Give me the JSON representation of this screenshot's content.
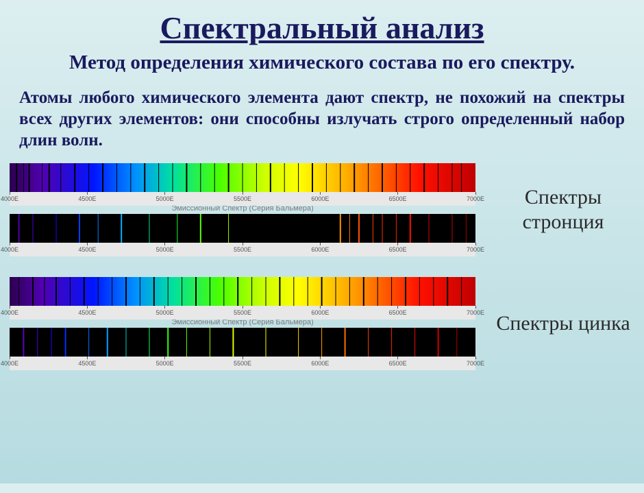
{
  "title": "Спектральный анализ",
  "subtitle": "Метод определения химического состава по его спектру.",
  "paragraph": "Атомы любого химического элемента дают спектр, не похожий на спектры всех других элементов: они способны излучать строго определенный набор длин волн.",
  "emission_caption": "Эмиссионный Спектр (Серия Бальмера)",
  "tick_labels": [
    "4000E",
    "4500E",
    "5000E",
    "5500E",
    "6000E",
    "6500E",
    "7000E"
  ],
  "tick_positions_pct": [
    0,
    16.67,
    33.33,
    50,
    66.67,
    83.33,
    100
  ],
  "rainbow_gradient": "linear-gradient(to right,#2c004f 0%,#5100b0 7%,#0015ff 18%,#0090ff 27%,#00e0a0 35%,#49ff00 45%,#d0ff00 55%,#ffff00 62%,#ffb000 72%,#ff6000 80%,#ff1000 88%,#c00000 100%)",
  "strontium": {
    "label": "Спектры стронция",
    "absorption_lines": [
      {
        "p": 1.5,
        "w": 2,
        "c": "#000"
      },
      {
        "p": 3,
        "w": 1,
        "c": "#000"
      },
      {
        "p": 4.2,
        "w": 2,
        "c": "#000"
      },
      {
        "p": 7,
        "w": 1,
        "c": "#000"
      },
      {
        "p": 8.5,
        "w": 2,
        "c": "#000"
      },
      {
        "p": 11,
        "w": 1,
        "c": "#000"
      },
      {
        "p": 14,
        "w": 2,
        "c": "#000"
      },
      {
        "p": 17,
        "w": 1,
        "c": "#000"
      },
      {
        "p": 20,
        "w": 2,
        "c": "#000"
      },
      {
        "p": 23,
        "w": 1,
        "c": "#000"
      },
      {
        "p": 26,
        "w": 1,
        "c": "#000"
      },
      {
        "p": 29,
        "w": 2,
        "c": "#000"
      },
      {
        "p": 32,
        "w": 1,
        "c": "#000"
      },
      {
        "p": 35,
        "w": 1,
        "c": "#000"
      },
      {
        "p": 38,
        "w": 2,
        "c": "#000"
      },
      {
        "p": 41,
        "w": 1,
        "c": "#000"
      },
      {
        "p": 44,
        "w": 1,
        "c": "#000"
      },
      {
        "p": 47,
        "w": 2,
        "c": "#000"
      },
      {
        "p": 50,
        "w": 1,
        "c": "#000"
      },
      {
        "p": 53,
        "w": 1,
        "c": "#000"
      },
      {
        "p": 56,
        "w": 2,
        "c": "#000"
      },
      {
        "p": 59,
        "w": 1,
        "c": "#000"
      },
      {
        "p": 62,
        "w": 1,
        "c": "#000"
      },
      {
        "p": 65,
        "w": 2,
        "c": "#000"
      },
      {
        "p": 68,
        "w": 1,
        "c": "#000"
      },
      {
        "p": 71,
        "w": 1,
        "c": "#000"
      },
      {
        "p": 74,
        "w": 2,
        "c": "#000"
      },
      {
        "p": 77,
        "w": 1,
        "c": "#000"
      },
      {
        "p": 80,
        "w": 2,
        "c": "#000"
      },
      {
        "p": 83,
        "w": 1,
        "c": "#000"
      },
      {
        "p": 86,
        "w": 1,
        "c": "#000"
      },
      {
        "p": 89,
        "w": 2,
        "c": "#000"
      },
      {
        "p": 92,
        "w": 1,
        "c": "#000"
      },
      {
        "p": 95,
        "w": 1,
        "c": "#000"
      },
      {
        "p": 97,
        "w": 1,
        "c": "#000"
      }
    ],
    "emission_lines": [
      {
        "p": 2,
        "w": 2,
        "c": "#5100b0"
      },
      {
        "p": 5,
        "w": 1,
        "c": "#4a00d0"
      },
      {
        "p": 10,
        "w": 1,
        "c": "#2500ff"
      },
      {
        "p": 15,
        "w": 2,
        "c": "#0040ff"
      },
      {
        "p": 19,
        "w": 1,
        "c": "#0080ff"
      },
      {
        "p": 24,
        "w": 2,
        "c": "#00b0ff"
      },
      {
        "p": 30,
        "w": 1,
        "c": "#00e090"
      },
      {
        "p": 36,
        "w": 1,
        "c": "#10ff30"
      },
      {
        "p": 41,
        "w": 2,
        "c": "#60ff00"
      },
      {
        "p": 47,
        "w": 1,
        "c": "#a0ff00"
      },
      {
        "p": 71,
        "w": 2,
        "c": "#ff9000"
      },
      {
        "p": 73,
        "w": 1,
        "c": "#ff7000"
      },
      {
        "p": 75,
        "w": 2,
        "c": "#ff5000"
      },
      {
        "p": 78,
        "w": 1,
        "c": "#ff4000"
      },
      {
        "p": 80,
        "w": 1,
        "c": "#ff3000"
      },
      {
        "p": 83,
        "w": 1,
        "c": "#ff2000"
      },
      {
        "p": 86,
        "w": 2,
        "c": "#ff1000"
      },
      {
        "p": 90,
        "w": 1,
        "c": "#e00000"
      },
      {
        "p": 95,
        "w": 1,
        "c": "#c00000"
      },
      {
        "p": 98,
        "w": 1,
        "c": "#a00000"
      }
    ]
  },
  "zinc": {
    "label": "Спектры цинка",
    "absorption_lines": [
      {
        "p": 2,
        "w": 1,
        "c": "#000"
      },
      {
        "p": 5,
        "w": 2,
        "c": "#000"
      },
      {
        "p": 7.5,
        "w": 1,
        "c": "#000"
      },
      {
        "p": 10,
        "w": 2,
        "c": "#000"
      },
      {
        "p": 13,
        "w": 1,
        "c": "#000"
      },
      {
        "p": 16,
        "w": 2,
        "c": "#000"
      },
      {
        "p": 19,
        "w": 1,
        "c": "#000"
      },
      {
        "p": 22,
        "w": 1,
        "c": "#000"
      },
      {
        "p": 25,
        "w": 2,
        "c": "#000"
      },
      {
        "p": 28,
        "w": 1,
        "c": "#000"
      },
      {
        "p": 31,
        "w": 2,
        "c": "#000"
      },
      {
        "p": 34,
        "w": 1,
        "c": "#000"
      },
      {
        "p": 37,
        "w": 1,
        "c": "#000"
      },
      {
        "p": 40,
        "w": 2,
        "c": "#000"
      },
      {
        "p": 43,
        "w": 1,
        "c": "#000"
      },
      {
        "p": 46,
        "w": 1,
        "c": "#000"
      },
      {
        "p": 49,
        "w": 2,
        "c": "#000"
      },
      {
        "p": 52,
        "w": 1,
        "c": "#000"
      },
      {
        "p": 55,
        "w": 1,
        "c": "#000"
      },
      {
        "p": 58,
        "w": 2,
        "c": "#000"
      },
      {
        "p": 61,
        "w": 1,
        "c": "#000"
      },
      {
        "p": 64,
        "w": 1,
        "c": "#000"
      },
      {
        "p": 67,
        "w": 2,
        "c": "#000"
      },
      {
        "p": 70,
        "w": 1,
        "c": "#000"
      },
      {
        "p": 73,
        "w": 1,
        "c": "#000"
      },
      {
        "p": 76,
        "w": 2,
        "c": "#000"
      },
      {
        "p": 79,
        "w": 1,
        "c": "#000"
      },
      {
        "p": 82,
        "w": 1,
        "c": "#000"
      },
      {
        "p": 85,
        "w": 2,
        "c": "#000"
      },
      {
        "p": 88,
        "w": 1,
        "c": "#000"
      },
      {
        "p": 91,
        "w": 1,
        "c": "#000"
      },
      {
        "p": 94,
        "w": 2,
        "c": "#000"
      },
      {
        "p": 97,
        "w": 1,
        "c": "#000"
      }
    ],
    "emission_lines": [
      {
        "p": 3,
        "w": 2,
        "c": "#5a00c0"
      },
      {
        "p": 6,
        "w": 1,
        "c": "#4800e0"
      },
      {
        "p": 9,
        "w": 1,
        "c": "#2000ff"
      },
      {
        "p": 12,
        "w": 2,
        "c": "#0030ff"
      },
      {
        "p": 17,
        "w": 1,
        "c": "#0070ff"
      },
      {
        "p": 21,
        "w": 2,
        "c": "#00a0ff"
      },
      {
        "p": 25,
        "w": 1,
        "c": "#00d0c0"
      },
      {
        "p": 30,
        "w": 1,
        "c": "#00ff60"
      },
      {
        "p": 34,
        "w": 2,
        "c": "#30ff10"
      },
      {
        "p": 38,
        "w": 1,
        "c": "#70ff00"
      },
      {
        "p": 43,
        "w": 1,
        "c": "#a8ff00"
      },
      {
        "p": 48,
        "w": 2,
        "c": "#e0ff00"
      },
      {
        "p": 55,
        "w": 1,
        "c": "#ffff00"
      },
      {
        "p": 62,
        "w": 1,
        "c": "#ffd000"
      },
      {
        "p": 67,
        "w": 1,
        "c": "#ffa000"
      },
      {
        "p": 72,
        "w": 2,
        "c": "#ff7000"
      },
      {
        "p": 77,
        "w": 1,
        "c": "#ff4000"
      },
      {
        "p": 82,
        "w": 1,
        "c": "#ff2000"
      },
      {
        "p": 87,
        "w": 1,
        "c": "#f01000"
      },
      {
        "p": 92,
        "w": 2,
        "c": "#d00000"
      },
      {
        "p": 96,
        "w": 1,
        "c": "#b00000"
      }
    ]
  }
}
